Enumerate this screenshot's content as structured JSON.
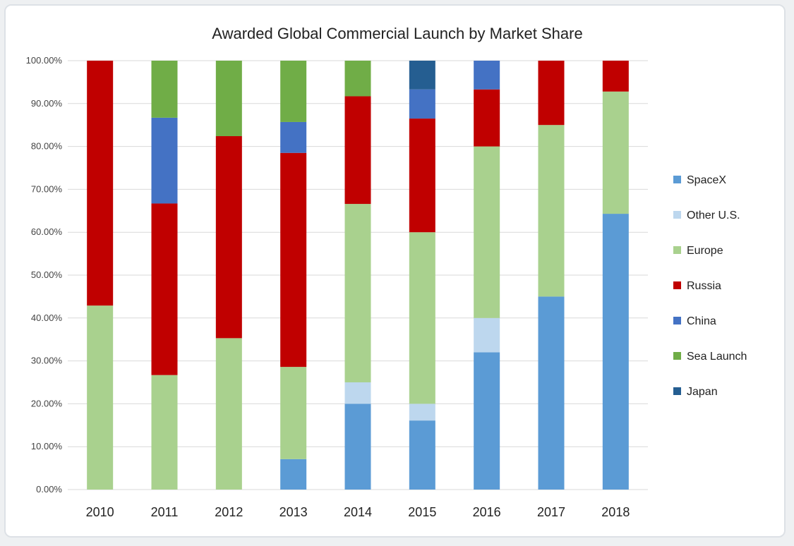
{
  "chart_data": {
    "type": "bar",
    "stacked": true,
    "title": "Awarded Global Commercial Launch by Market Share",
    "xlabel": "",
    "ylabel": "",
    "ylim": [
      0,
      100
    ],
    "grid": true,
    "legend_position": "right",
    "y_ticks": [
      "0.00%",
      "10.00%",
      "20.00%",
      "30.00%",
      "40.00%",
      "50.00%",
      "60.00%",
      "70.00%",
      "80.00%",
      "90.00%",
      "100.00%"
    ],
    "categories": [
      "2010",
      "2011",
      "2012",
      "2013",
      "2014",
      "2015",
      "2016",
      "2017",
      "2018"
    ],
    "series": [
      {
        "name": "SpaceX",
        "color": "#5b9bd5",
        "values": [
          0,
          0,
          0,
          7.1,
          20.0,
          16.1,
          32.0,
          45.0,
          64.3
        ]
      },
      {
        "name": "Other U.S.",
        "color": "#bdd7ee",
        "values": [
          0,
          0,
          0,
          0,
          5.0,
          3.9,
          8.0,
          0,
          0
        ]
      },
      {
        "name": "Europe",
        "color": "#a9d18e",
        "values": [
          42.9,
          26.7,
          35.3,
          21.5,
          41.6,
          40.0,
          40.0,
          40.0,
          28.5
        ]
      },
      {
        "name": "Russia",
        "color": "#c00000",
        "values": [
          57.1,
          40.0,
          47.1,
          49.9,
          25.1,
          26.5,
          13.3,
          15.0,
          7.2
        ]
      },
      {
        "name": "China",
        "color": "#4472c4",
        "values": [
          0,
          20.0,
          0,
          7.2,
          0,
          6.8,
          6.7,
          0,
          0
        ]
      },
      {
        "name": "Sea Launch",
        "color": "#70ad47",
        "values": [
          0,
          13.3,
          17.6,
          14.3,
          8.3,
          0,
          0,
          0,
          0
        ]
      },
      {
        "name": "Japan",
        "color": "#255e91",
        "values": [
          0,
          0,
          0,
          0,
          0,
          6.7,
          0,
          0,
          0
        ]
      }
    ]
  }
}
